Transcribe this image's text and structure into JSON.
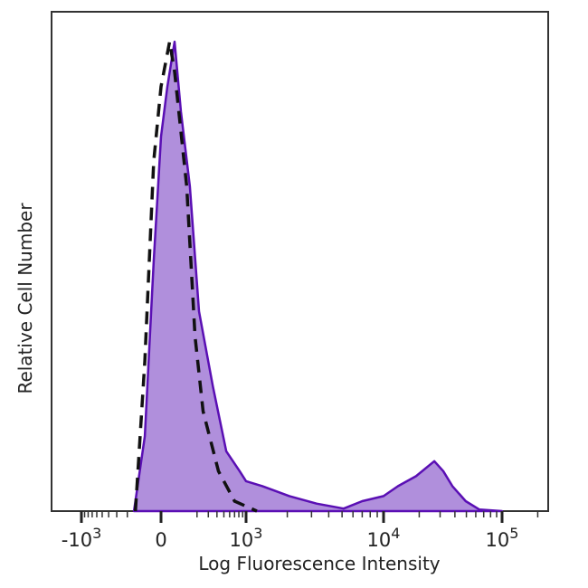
{
  "chart_data": {
    "type": "area",
    "title": "",
    "xlabel": "Log Fluorescence Intensity",
    "ylabel": "Relative Cell Number",
    "x_scale": "biexponential",
    "xlim": [
      -1500,
      200000
    ],
    "ylim": [
      0,
      100
    ],
    "grid": false,
    "legend": "none",
    "x_ticks": [
      {
        "value": -1000,
        "base": "-10",
        "exp": "3"
      },
      {
        "value": 0,
        "base": "0",
        "exp": ""
      },
      {
        "value": 1000,
        "base": "10",
        "exp": "3"
      },
      {
        "value": 10000,
        "base": "10",
        "exp": "4"
      },
      {
        "value": 100000,
        "base": "10",
        "exp": "5"
      }
    ],
    "series": [
      {
        "style": "filled-solid",
        "fill": "#b08fdc",
        "stroke": "#5a0fb4",
        "points": [
          [
            -150,
            0
          ],
          [
            -83,
            15
          ],
          [
            -36,
            50
          ],
          [
            0,
            75
          ],
          [
            29,
            85
          ],
          [
            64,
            94
          ],
          [
            97,
            80
          ],
          [
            150,
            65
          ],
          [
            216,
            40
          ],
          [
            350,
            25
          ],
          [
            539,
            12
          ],
          [
            820,
            8
          ],
          [
            1000,
            6
          ],
          [
            1317,
            5
          ],
          [
            2070,
            3
          ],
          [
            3260,
            1.5
          ],
          [
            5130,
            0.5
          ],
          [
            7000,
            2
          ],
          [
            10000,
            3
          ],
          [
            13250,
            5
          ],
          [
            18800,
            7
          ],
          [
            26800,
            10
          ],
          [
            31900,
            8
          ],
          [
            38100,
            5
          ],
          [
            49300,
            2
          ],
          [
            64400,
            0.3
          ],
          [
            100000,
            0
          ]
        ]
      },
      {
        "style": "dashed",
        "stroke": "#111111",
        "points": [
          [
            -140,
            0
          ],
          [
            -83,
            30
          ],
          [
            -36,
            70
          ],
          [
            0,
            85
          ],
          [
            40,
            94
          ],
          [
            64,
            88
          ],
          [
            130,
            65
          ],
          [
            185,
            35
          ],
          [
            250,
            20
          ],
          [
            420,
            8
          ],
          [
            700,
            2
          ],
          [
            1200,
            0
          ]
        ]
      }
    ]
  }
}
